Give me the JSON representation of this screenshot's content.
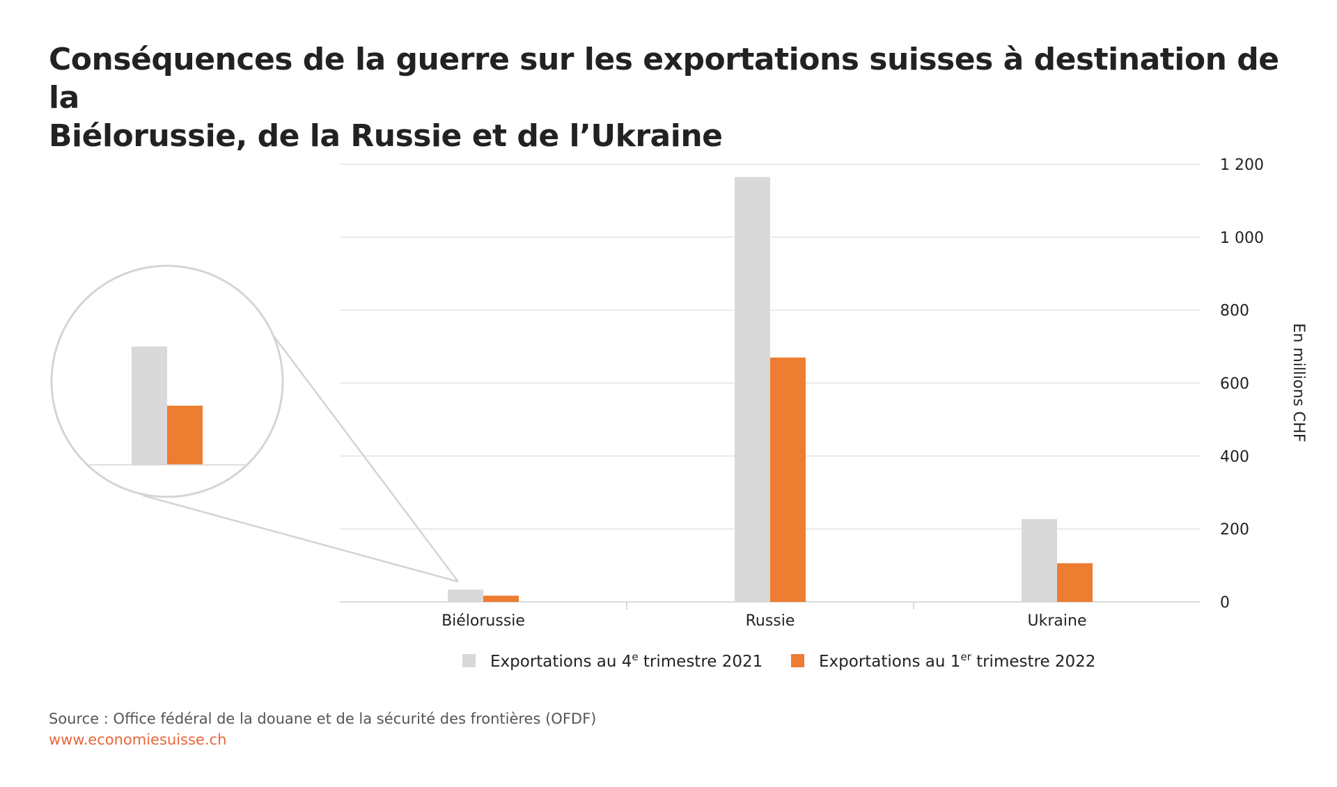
{
  "title": {
    "line1": "Conséquences de la guerre sur les exportations suisses à destination de la",
    "line2": "Biélorussie, de la Russie et de l’Ukraine"
  },
  "footer": {
    "source": "Source : Office fédéral de la douane et de la sécurité des frontières (OFDF)",
    "url": "www.economiesuisse.ch"
  },
  "colors": {
    "series1": "#d9d9d9",
    "series2": "#ed7d31",
    "grid": "#e3e3e3",
    "axis": "#cfcfcf",
    "url": "#e8663a"
  },
  "chart_data": {
    "type": "bar",
    "categories": [
      "Biélorussie",
      "Russie",
      "Ukraine"
    ],
    "series": [
      {
        "name": "Exportations au 4e trimestre 2021",
        "name_main": "Exportations au 4",
        "name_sup": "e",
        "name_rest": " trimestre 2021",
        "values": [
          34,
          1165,
          227
        ]
      },
      {
        "name": "Exportations au 1er trimestre 2022",
        "name_main": "Exportations au 1",
        "name_sup": "er",
        "name_rest": " trimestre 2022",
        "values": [
          17,
          670,
          106
        ]
      }
    ],
    "ylabel": "En millions CHF",
    "ylim": [
      0,
      1200
    ],
    "yticks": [
      0,
      200,
      400,
      600,
      800,
      1000,
      1200
    ],
    "ytick_labels": [
      "0",
      "200",
      "400",
      "600",
      "800",
      "1 000",
      "1 200"
    ],
    "y_axis_side": "right",
    "grid": true,
    "legend_position": "bottom",
    "inset_zoom_category": "Biélorussie"
  }
}
